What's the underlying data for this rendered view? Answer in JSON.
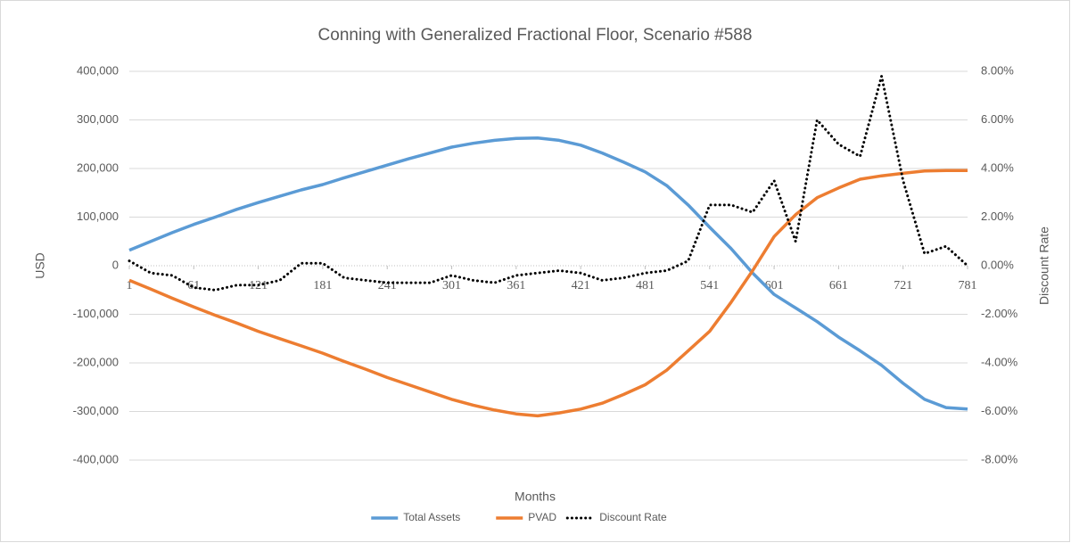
{
  "chart_data": {
    "type": "line",
    "title": "Conning with Generalized Fractional Floor, Scenario #588",
    "x_label": "Months",
    "y_label": "USD",
    "y2_label": "Discount Rate",
    "x": [
      1,
      21,
      41,
      61,
      81,
      101,
      121,
      141,
      161,
      181,
      201,
      221,
      241,
      261,
      281,
      301,
      321,
      341,
      361,
      381,
      401,
      421,
      441,
      461,
      481,
      501,
      521,
      541,
      561,
      581,
      601,
      621,
      641,
      661,
      681,
      701,
      721,
      741,
      761,
      781
    ],
    "series": [
      {
        "name": "Total Assets",
        "color": "#5b9bd5",
        "style": "solid",
        "values": [
          32000,
          50000,
          68000,
          85000,
          100000,
          116000,
          130000,
          143000,
          156000,
          167000,
          181000,
          194000,
          207000,
          220000,
          232000,
          244000,
          252000,
          258000,
          262000,
          263000,
          258000,
          248000,
          232000,
          213000,
          193000,
          165000,
          125000,
          79000,
          35000,
          -15000,
          -59000,
          -87000,
          -115000,
          -147000,
          -175000,
          -205000,
          -242000,
          -275000,
          -292000,
          -295000
        ]
      },
      {
        "name": "PVAD",
        "color": "#ed7d31",
        "style": "solid",
        "values": [
          -30000,
          -48000,
          -67000,
          -85000,
          -102000,
          -118000,
          -135000,
          -150000,
          -165000,
          -180000,
          -197000,
          -213000,
          -230000,
          -245000,
          -260000,
          -275000,
          -287000,
          -297000,
          -305000,
          -309000,
          -303000,
          -295000,
          -283000,
          -265000,
          -245000,
          -215000,
          -175000,
          -135000,
          -75000,
          -10000,
          60000,
          105000,
          140000,
          160000,
          178000,
          185000,
          190000,
          195000,
          196000,
          196000
        ]
      },
      {
        "name": "Discount Rate",
        "color": "#000000",
        "style": "dotted",
        "axis": "y2",
        "values": [
          0.2,
          -0.3,
          -0.4,
          -0.9,
          -1.0,
          -0.8,
          -0.8,
          -0.6,
          0.1,
          0.1,
          -0.5,
          -0.6,
          -0.7,
          -0.7,
          -0.7,
          -0.4,
          -0.6,
          -0.7,
          -0.4,
          -0.3,
          -0.2,
          -0.3,
          -0.6,
          -0.5,
          -0.3,
          -0.2,
          0.2,
          2.5,
          2.5,
          2.2,
          3.5,
          1.0,
          6.0,
          5.0,
          4.5,
          7.8,
          3.5,
          0.5,
          0.8,
          0.0
        ]
      }
    ],
    "xlim": [
      1,
      781
    ],
    "xticks": [
      1,
      61,
      121,
      181,
      241,
      301,
      361,
      421,
      481,
      541,
      601,
      661,
      721,
      781
    ],
    "ylim": [
      -400000,
      400000
    ],
    "yticks": [
      {
        "value": -400000,
        "label": "-400,000"
      },
      {
        "value": -300000,
        "label": "-300,000"
      },
      {
        "value": -200000,
        "label": "-200,000"
      },
      {
        "value": -100000,
        "label": "-100,000"
      },
      0,
      {
        "value": 100000,
        "label": "100,000"
      },
      {
        "value": 200000,
        "label": "200,000"
      },
      {
        "value": 300000,
        "label": "300,000"
      },
      {
        "value": 400000,
        "label": "400,000"
      }
    ],
    "y2lim": [
      -8,
      8
    ],
    "y2ticks": [
      {
        "value": -8,
        "label": "-8.00%"
      },
      {
        "value": -6,
        "label": "-6.00%"
      },
      {
        "value": -4,
        "label": "-4.00%"
      },
      {
        "value": -2,
        "label": "-2.00%"
      },
      {
        "value": 0,
        "label": "0.00%"
      },
      {
        "value": 2,
        "label": "2.00%"
      },
      {
        "value": 4,
        "label": "4.00%"
      },
      {
        "value": 6,
        "label": "6.00%"
      },
      {
        "value": 8,
        "label": "8.00%"
      }
    ],
    "grid": true,
    "legend": "bottom"
  }
}
